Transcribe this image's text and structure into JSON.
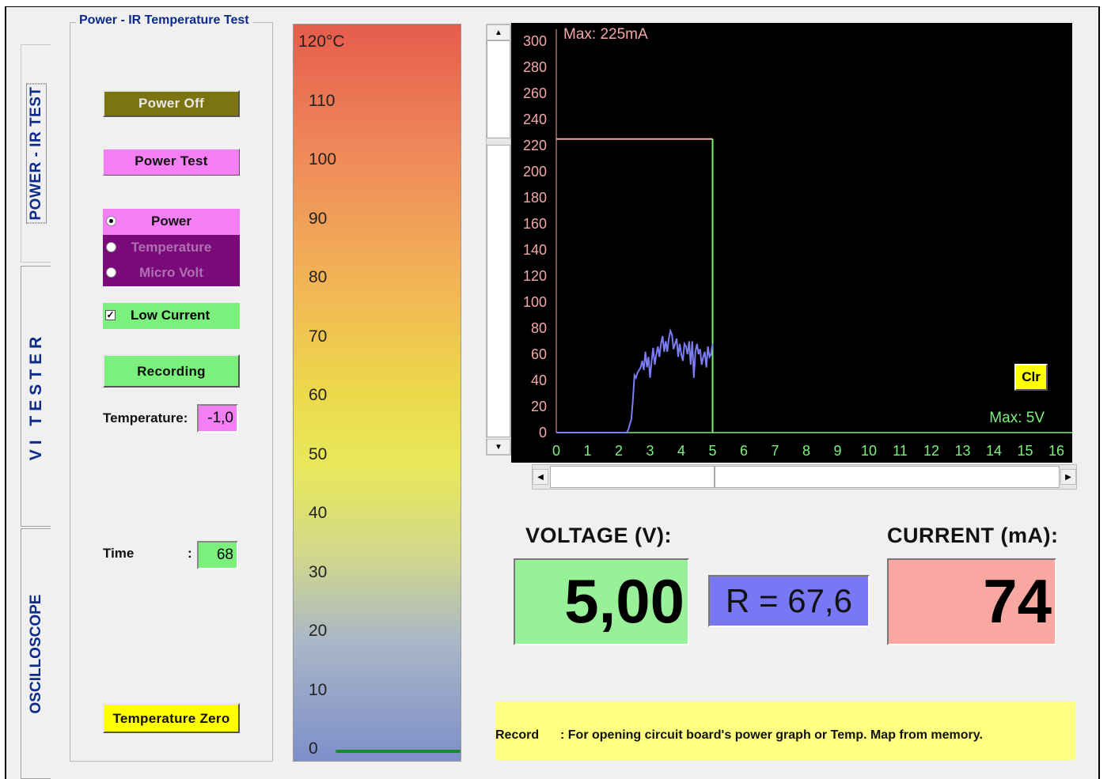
{
  "tabs": [
    {
      "label": "POWER - IR TEST",
      "active": true
    },
    {
      "label": "VI TESTER",
      "active": false
    },
    {
      "label": "OSCILLOSCOPE",
      "active": false
    }
  ],
  "group": {
    "title": "Power - IR Temperature Test"
  },
  "buttons": {
    "power_off": "Power Off",
    "power_test": "Power Test",
    "recording": "Recording",
    "temperature_zero": "Temperature Zero",
    "clr": "Clr"
  },
  "mode": {
    "options": [
      "Power",
      "Temperature",
      "Micro Volt"
    ],
    "selected": "Power"
  },
  "low_current": {
    "label": "Low Current",
    "checked": true
  },
  "temperature": {
    "label": "Temperature:",
    "value": "-1,0"
  },
  "time": {
    "label": "Time",
    "separator": ":",
    "value": "68"
  },
  "scale": {
    "ticks": [
      "120°C",
      "110",
      "100",
      "90",
      "80",
      "70",
      "60",
      "50",
      "40",
      "30",
      "20",
      "10",
      "0"
    ]
  },
  "chart_data": {
    "type": "line",
    "max_current_label": "Max: 225mA",
    "max_voltage_label": "Max: 5V",
    "xlim": [
      0,
      16
    ],
    "ylim": [
      0,
      300
    ],
    "x_ticks": [
      "0",
      "1",
      "2",
      "3",
      "4",
      "5",
      "6",
      "7",
      "8",
      "9",
      "10",
      "11",
      "12",
      "13",
      "14",
      "15",
      "16"
    ],
    "y_ticks": [
      "0",
      "20",
      "40",
      "60",
      "80",
      "100",
      "120",
      "140",
      "160",
      "180",
      "200",
      "220",
      "240",
      "260",
      "280",
      "300"
    ],
    "series": [
      {
        "color": "#f4a8a8",
        "x": [
          0,
          5,
          5
        ],
        "y": [
          225,
          225,
          0
        ]
      },
      {
        "color": "#7c7cf4",
        "x": [
          0,
          2.25,
          2.3,
          2.4,
          2.45,
          2.5,
          2.55,
          2.6,
          2.7,
          2.75,
          2.8,
          2.85,
          2.9,
          2.95,
          3.0,
          3.05,
          3.1,
          3.15,
          3.2,
          3.25,
          3.3,
          3.35,
          3.4,
          3.45,
          3.5,
          3.55,
          3.6,
          3.65,
          3.7,
          3.75,
          3.8,
          3.85,
          3.9,
          3.95,
          4.0,
          4.05,
          4.1,
          4.15,
          4.2,
          4.25,
          4.3,
          4.35,
          4.4,
          4.45,
          4.5,
          4.55,
          4.6,
          4.65,
          4.7,
          4.75,
          4.8,
          4.85,
          4.9,
          4.95,
          5.0
        ],
        "y": [
          0,
          0,
          2,
          10,
          25,
          44,
          42,
          46,
          50,
          55,
          48,
          62,
          50,
          58,
          42,
          55,
          65,
          52,
          60,
          66,
          58,
          68,
          74,
          62,
          70,
          62,
          72,
          78,
          75,
          64,
          68,
          72,
          58,
          68,
          60,
          55,
          68,
          66,
          60,
          70,
          52,
          70,
          42,
          62,
          68,
          60,
          64,
          52,
          58,
          62,
          50,
          66,
          58,
          60,
          68
        ]
      }
    ]
  },
  "meters": {
    "voltage_title": "VOLTAGE (V):",
    "voltage_value": "5,00",
    "resistance_value": "R = 67,6",
    "current_title": "CURRENT (mA):",
    "current_value": "74"
  },
  "status": {
    "key": "Record",
    "text": ": For opening circuit board's power graph or Temp. Map from memory."
  },
  "colors": {
    "chart_bg": "#000000",
    "axis_green": "#7cf07c",
    "label_pink": "#f4a8a8",
    "current_line": "#7c7cf4"
  }
}
